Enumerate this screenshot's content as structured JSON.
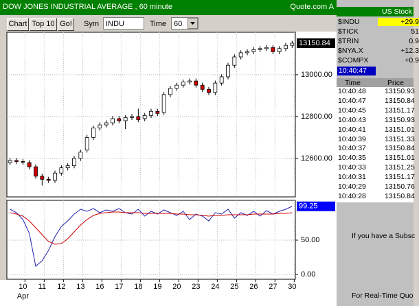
{
  "header": {
    "title": "DOW JONES INDUSTRIAL AVERAGE , 60 minute",
    "brand": "Quote.com  A"
  },
  "toolbar": {
    "buttons": [
      "Chart",
      "Top 10",
      "Go!"
    ],
    "symbol_label": "Sym",
    "symbol": "INDU",
    "time_label": "Time",
    "time": "60"
  },
  "chart_data": [
    {
      "type": "candlestick",
      "open": [
        12580,
        12590,
        12585,
        12580,
        12560,
        12515,
        12500,
        12495,
        12530,
        12555,
        12565,
        12600,
        12640,
        12700,
        12745,
        12760,
        12770,
        12790,
        12780,
        12795,
        12800,
        12790,
        12805,
        12825,
        12820,
        12905,
        12935,
        12950,
        12965,
        12970,
        12950,
        12930,
        12915,
        12960,
        12990,
        13045,
        13085,
        13105,
        13110,
        13120,
        13125,
        13130,
        13110,
        13125,
        13140
      ],
      "high": [
        12602,
        12602,
        12597,
        12592,
        12572,
        12527,
        12512,
        12542,
        12567,
        12577,
        12612,
        12642,
        12712,
        12757,
        12772,
        12782,
        12802,
        12802,
        12807,
        12812,
        12838,
        12817,
        12837,
        12837,
        12917,
        12947,
        12962,
        12977,
        12982,
        12982,
        12962,
        12942,
        12972,
        13002,
        13057,
        13097,
        13117,
        13122,
        13132,
        13137,
        13142,
        13142,
        13137,
        13152,
        13162
      ],
      "low": [
        12568,
        12573,
        12570,
        12548,
        12503,
        12470,
        12483,
        12483,
        12518,
        12543,
        12553,
        12588,
        12628,
        12688,
        12733,
        12748,
        12758,
        12768,
        12740,
        12783,
        12773,
        12778,
        12793,
        12803,
        12808,
        12893,
        12923,
        12938,
        12953,
        12938,
        12918,
        12903,
        12903,
        12948,
        12978,
        13033,
        13073,
        13093,
        13098,
        13108,
        13113,
        13098,
        13098,
        13113,
        13128
      ],
      "close": [
        12590,
        12585,
        12582,
        12560,
        12515,
        12500,
        12495,
        12530,
        12555,
        12565,
        12600,
        12630,
        12700,
        12745,
        12760,
        12770,
        12790,
        12780,
        12795,
        12800,
        12785,
        12805,
        12825,
        12815,
        12905,
        12935,
        12950,
        12965,
        12970,
        12950,
        12930,
        12915,
        12960,
        12990,
        13045,
        13085,
        13105,
        13110,
        13120,
        13125,
        13130,
        13110,
        13125,
        13140,
        13150.84
      ],
      "up_color": "#ffffff",
      "down_color": "#cc0000",
      "xlim": [
        0,
        45
      ],
      "ylim": [
        12416,
        13203
      ],
      "yticks": [
        {
          "value": 12600,
          "label": "12600.00"
        },
        {
          "value": 12800,
          "label": "12800.00"
        },
        {
          "value": 13000,
          "label": "13000.00"
        }
      ],
      "grid": true
    },
    {
      "type": "line",
      "series": [
        {
          "color": "#2020b0",
          "values": [
            95,
            90,
            80,
            60,
            12,
            20,
            35,
            55,
            70,
            78,
            88,
            95,
            92,
            96,
            90,
            94,
            92,
            96,
            90,
            88,
            95,
            85,
            92,
            88,
            94,
            90,
            86,
            92,
            80,
            88,
            85,
            78,
            90,
            88,
            95,
            82,
            90,
            86,
            92,
            85,
            93,
            88,
            92,
            95,
            99.25
          ]
        },
        {
          "color": "#cc0000",
          "values": [
            90,
            88,
            85,
            78,
            68,
            58,
            48,
            44,
            45,
            52,
            62,
            72,
            80,
            86,
            89,
            90,
            91,
            91,
            90,
            90,
            90,
            89,
            89,
            89,
            89,
            89,
            88,
            88,
            87,
            87,
            86,
            85,
            86,
            86,
            87,
            87,
            87,
            87,
            88,
            88,
            88,
            88,
            89,
            89,
            90
          ]
        }
      ],
      "xlim": [
        0,
        45
      ],
      "ylim": [
        -7,
        108
      ],
      "yticks": [
        {
          "value": 0,
          "label": "0.00"
        },
        {
          "value": 50,
          "label": "50.00"
        }
      ],
      "xticks": [
        {
          "value": 2.5,
          "label": "10"
        },
        {
          "value": 5.5,
          "label": "11"
        },
        {
          "value": 8.5,
          "label": "12"
        },
        {
          "value": 11.5,
          "label": "13"
        },
        {
          "value": 14.5,
          "label": "16"
        },
        {
          "value": 17.5,
          "label": "17"
        },
        {
          "value": 20.5,
          "label": "18"
        },
        {
          "value": 23.5,
          "label": "19"
        },
        {
          "value": 26.5,
          "label": "20"
        },
        {
          "value": 29.5,
          "label": "23"
        },
        {
          "value": 32.5,
          "label": "24"
        },
        {
          "value": 35.5,
          "label": "25"
        },
        {
          "value": 38.5,
          "label": "26"
        },
        {
          "value": 41.5,
          "label": "27"
        },
        {
          "value": 44.5,
          "label": "30"
        }
      ],
      "x_sublabel": "Apr",
      "grid": true
    }
  ],
  "quotes": {
    "title": "US Stock",
    "rows": [
      [
        "$INDU",
        "+29.9"
      ],
      [
        "$TICK",
        "51"
      ],
      [
        "$TRIN",
        "0.9"
      ],
      [
        "$NYA.X",
        "+12.3"
      ],
      [
        "$COMPX",
        "+0.9"
      ]
    ],
    "time": "10:40:47",
    "columns": [
      "Time",
      "Price"
    ],
    "ticks": [
      [
        "10:40:48",
        "13150.93"
      ],
      [
        "10:40:47",
        "13150.84"
      ],
      [
        "10:40:45",
        "13151.17"
      ],
      [
        "10:40:43",
        "13150.93"
      ],
      [
        "10:40:41",
        "13151.01"
      ],
      [
        "10:40:39",
        "13151.33"
      ],
      [
        "10:40:37",
        "13150.84"
      ],
      [
        "10:40:35",
        "13151.01"
      ],
      [
        "10:40:33",
        "13151.25"
      ],
      [
        "10:40:31",
        "13151.17"
      ],
      [
        "10:40:29",
        "13150.76"
      ],
      [
        "10:40:28",
        "13150.84"
      ]
    ],
    "messages": [
      "If you have a Subsc",
      "For Real-Time Quo"
    ]
  }
}
